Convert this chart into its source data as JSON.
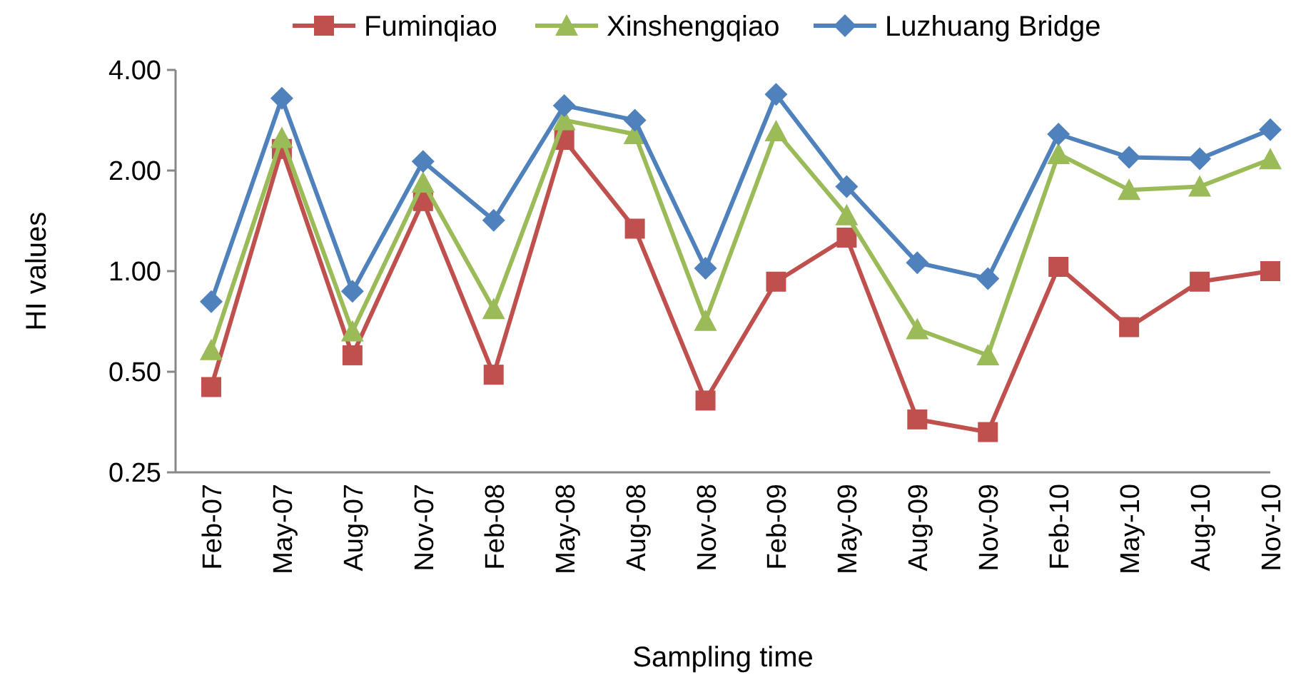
{
  "chart_data": {
    "type": "line",
    "xlabel": "Sampling time",
    "ylabel": "HI values",
    "log": true,
    "legend": "top",
    "grid": false,
    "categories": [
      "Feb-07",
      "May-07",
      "Aug-07",
      "Nov-07",
      "Feb-08",
      "May-08",
      "Aug-08",
      "Nov-08",
      "Feb-09",
      "May-09",
      "Aug-09",
      "Nov-09",
      "Feb-10",
      "May-10",
      "Aug-10",
      "Nov-10"
    ],
    "ylim": [
      0.25,
      4
    ],
    "yticks": [
      {
        "value": 0.25,
        "label": "0.25"
      },
      {
        "value": 0.5,
        "label": "0.50"
      },
      {
        "value": 1,
        "label": "1.00"
      },
      {
        "value": 2,
        "label": "2.00"
      },
      {
        "value": 4,
        "label": "4.00"
      }
    ],
    "series": [
      {
        "name": "Fuminqiao",
        "color": "#c0504d",
        "marker": "square",
        "values": [
          0.45,
          2.32,
          0.56,
          1.62,
          0.49,
          2.47,
          1.34,
          0.41,
          0.93,
          1.26,
          0.36,
          0.33,
          1.03,
          0.68,
          0.93,
          1.0
        ]
      },
      {
        "name": "Xinshengqiao",
        "color": "#9bbb59",
        "marker": "triangle",
        "values": [
          0.58,
          2.5,
          0.66,
          1.84,
          0.77,
          2.83,
          2.57,
          0.71,
          2.62,
          1.47,
          0.67,
          0.56,
          2.24,
          1.75,
          1.79,
          2.16
        ]
      },
      {
        "name": "Luzhuang Bridge",
        "color": "#4f81bd",
        "marker": "diamond",
        "values": [
          0.81,
          3.29,
          0.87,
          2.13,
          1.42,
          3.13,
          2.83,
          1.02,
          3.38,
          1.79,
          1.06,
          0.95,
          2.57,
          2.19,
          2.17,
          2.65
        ]
      }
    ]
  }
}
